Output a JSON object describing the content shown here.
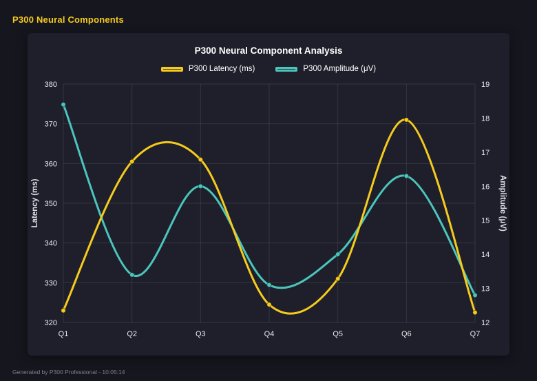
{
  "page": {
    "title": "P300 Neural Components",
    "footer": "Generated by P300 Professional - 10:05:14"
  },
  "chart_data": {
    "type": "line",
    "title": "P300 Neural Component Analysis",
    "categories": [
      "Q1",
      "Q2",
      "Q3",
      "Q4",
      "Q5",
      "Q6",
      "Q7"
    ],
    "series": [
      {
        "name": "P300 Latency (ms)",
        "axis": "left",
        "color": "#f5cb1d",
        "values": [
          323,
          360.5,
          361,
          324.5,
          331,
          371,
          322.5
        ]
      },
      {
        "name": "P300 Amplitude (μV)",
        "axis": "right",
        "color": "#4bc5bc",
        "values": [
          18.4,
          13.4,
          16.0,
          13.1,
          14.0,
          16.3,
          12.8
        ]
      }
    ],
    "left_axis": {
      "label": "Latency (ms)",
      "min": 320,
      "max": 380,
      "ticks": [
        320,
        330,
        340,
        350,
        360,
        370,
        380
      ]
    },
    "right_axis": {
      "label": "Amplitude (μV)",
      "min": 12,
      "max": 19,
      "ticks": [
        12,
        13,
        14,
        15,
        16,
        17,
        18,
        19
      ]
    },
    "grid": true,
    "legend_position": "top",
    "line_smoothing": "spline"
  },
  "colors": {
    "page_bg": "#16161f",
    "panel_bg": "#1f1f2b",
    "title_accent": "#f5cb1d",
    "grid": "rgba(255,255,255,0.10)",
    "text": "#ffffff",
    "muted_text": "#80808c"
  }
}
